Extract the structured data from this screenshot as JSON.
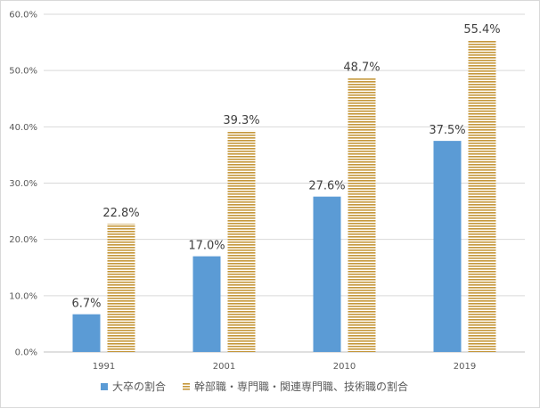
{
  "chart_data": {
    "type": "bar",
    "categories": [
      "1991",
      "2001",
      "2010",
      "2019"
    ],
    "series": [
      {
        "name": "大卒の割合",
        "values": [
          6.7,
          17.0,
          27.6,
          37.5
        ],
        "labels": [
          "6.7%",
          "17.0%",
          "27.6%",
          "37.5%"
        ],
        "color": "#5b9bd5",
        "pattern": "solid"
      },
      {
        "name": "幹部職・専門職・関連専門職、技術職の割合",
        "values": [
          22.8,
          39.3,
          48.7,
          55.4
        ],
        "labels": [
          "22.8%",
          "39.3%",
          "48.7%",
          "55.4%"
        ],
        "color": "#c5973a",
        "pattern": "horizontal-stripes"
      }
    ],
    "y_ticks": [
      "0.0%",
      "10.0%",
      "20.0%",
      "30.0%",
      "40.0%",
      "50.0%",
      "60.0%"
    ],
    "ylim": [
      0,
      60
    ],
    "grid": true,
    "legend_position": "bottom",
    "title": "",
    "xlabel": "",
    "ylabel": ""
  }
}
